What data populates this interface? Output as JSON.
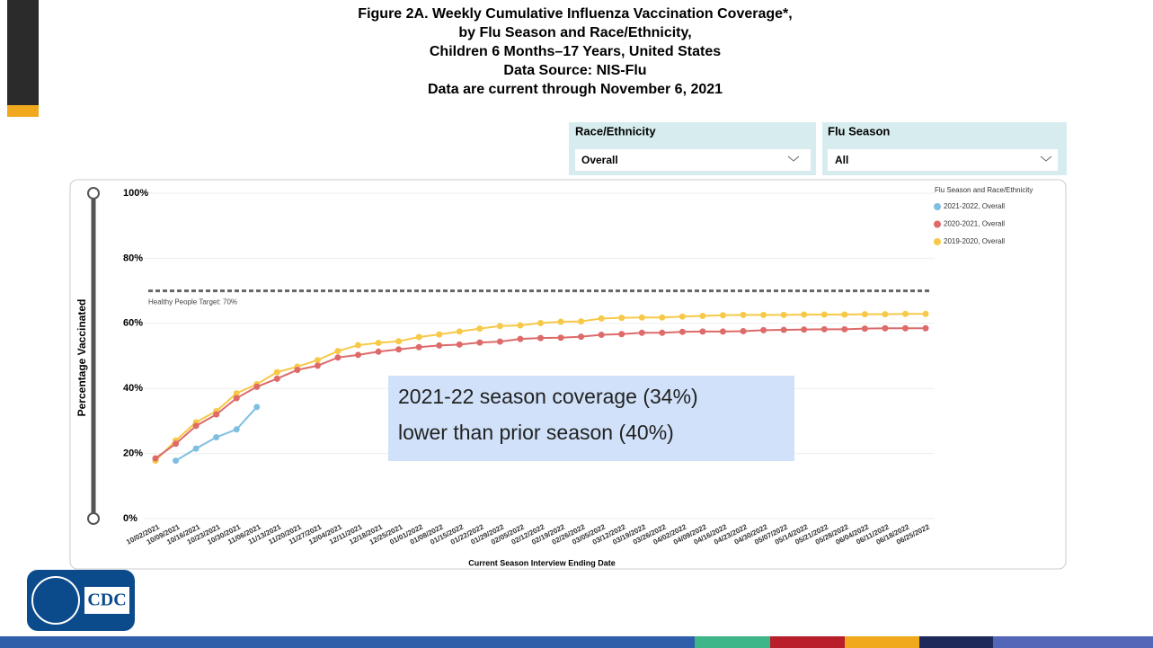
{
  "chart_data": {
    "type": "line",
    "title": [
      "Figure 2A. Weekly Cumulative Influenza Vaccination Coverage*,",
      "by Flu Season and Race/Ethnicity,",
      "Children 6 Months–17 Years, United States",
      "Data Source: NIS-Flu",
      "Data are current through November 6, 2021"
    ],
    "x_label": "Current Season Interview Ending Date",
    "y_label": "Percentage Vaccinated",
    "legend_title": "Flu Season and Race/Ethnicity",
    "legend": "top-right",
    "grid": true,
    "categories": [
      "10/02/2021",
      "10/09/2021",
      "10/16/2021",
      "10/23/2021",
      "10/30/2021",
      "11/06/2021",
      "11/13/2021",
      "11/20/2021",
      "11/27/2021",
      "12/04/2021",
      "12/11/2021",
      "12/18/2021",
      "12/25/2021",
      "01/01/2022",
      "01/08/2022",
      "01/15/2022",
      "01/22/2022",
      "01/29/2022",
      "02/05/2022",
      "02/12/2022",
      "02/19/2022",
      "02/26/2022",
      "03/05/2022",
      "03/12/2022",
      "03/19/2022",
      "03/26/2022",
      "04/02/2022",
      "04/09/2022",
      "04/16/2022",
      "04/23/2022",
      "04/30/2022",
      "05/07/2022",
      "05/14/2022",
      "05/21/2022",
      "05/28/2022",
      "06/04/2022",
      "06/11/2022",
      "06/18/2022",
      "06/25/2022"
    ],
    "series": [
      {
        "name": "2021-2022, Overall",
        "color": "#7ebfe0",
        "values": [
          null,
          17.8,
          21.5,
          25,
          27.4,
          34.3,
          null,
          null,
          null,
          null,
          null,
          null,
          null,
          null,
          null,
          null,
          null,
          null,
          null,
          null,
          null,
          null,
          null,
          null,
          null,
          null,
          null,
          null,
          null,
          null,
          null,
          null,
          null,
          null,
          null,
          null,
          null,
          null,
          null
        ]
      },
      {
        "name": "2020-2021, Overall",
        "color": "#de6a6a",
        "values": [
          18.5,
          23,
          28.5,
          32,
          37,
          40.5,
          43,
          45.7,
          47,
          49.5,
          50.3,
          51.3,
          52,
          52.7,
          53.2,
          53.5,
          54.1,
          54.4,
          55.2,
          55.5,
          55.6,
          55.9,
          56.5,
          56.7,
          57.1,
          57.1,
          57.4,
          57.5,
          57.5,
          57.6,
          57.9,
          58,
          58.1,
          58.2,
          58.2,
          58.4,
          58.5,
          58.5,
          58.5
        ]
      },
      {
        "name": "2019-2020, Overall",
        "color": "#f7c948",
        "values": [
          17.8,
          24,
          29.6,
          33,
          38.5,
          41.3,
          45,
          46.7,
          48.7,
          51.5,
          53.3,
          54,
          54.5,
          55.8,
          56.6,
          57.5,
          58.4,
          59.2,
          59.4,
          60.1,
          60.5,
          60.6,
          61.5,
          61.7,
          61.8,
          61.8,
          62.1,
          62.3,
          62.5,
          62.6,
          62.6,
          62.6,
          62.7,
          62.7,
          62.7,
          62.8,
          62.8,
          62.9,
          62.9
        ]
      }
    ],
    "ylim": [
      0,
      100
    ],
    "yticks": [
      {
        "value": 0,
        "label": "0%"
      },
      {
        "value": 20,
        "label": "20%"
      },
      {
        "value": 40,
        "label": "40%"
      },
      {
        "value": 60,
        "label": "60%"
      },
      {
        "value": 80,
        "label": "80%"
      },
      {
        "value": 100,
        "label": "100%"
      }
    ],
    "target": {
      "value": 70,
      "label": "Healthy People Target: 70%"
    }
  },
  "filters": [
    {
      "label": "Race/Ethnicity",
      "value": "Overall"
    },
    {
      "label": "Flu Season",
      "value": "All"
    }
  ],
  "annotation": [
    "2021-22 season coverage (34%)",
    "lower than prior season (40%)"
  ],
  "logo": "CDC"
}
